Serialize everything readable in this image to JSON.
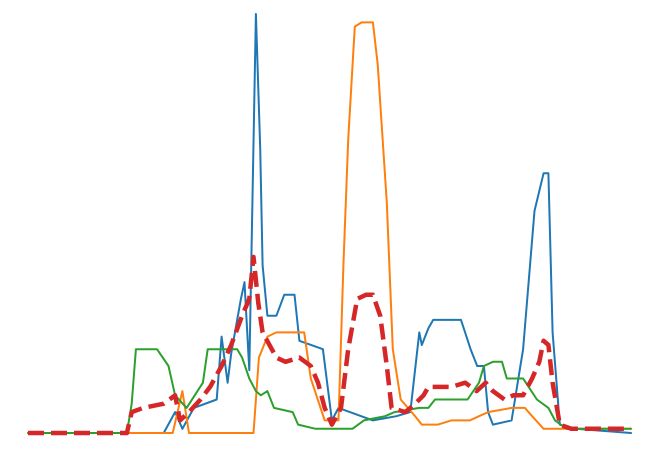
{
  "chart_data": {
    "type": "line",
    "title": "",
    "xlabel": "",
    "ylabel": "",
    "grid": false,
    "legend": "none",
    "axes_visible": false,
    "xlim": [
      0,
      100
    ],
    "ylim": [
      0,
      100
    ],
    "colors": {
      "blue": "#1f77b4",
      "orange": "#ff7f0e",
      "green": "#2ca02c",
      "red": "#d62728"
    },
    "series": [
      {
        "name": "blue",
        "color": "#1f77b4",
        "style": "solid",
        "points": [
          [
            0,
            0
          ],
          [
            15,
            0
          ],
          [
            22.5,
            0
          ],
          [
            24.4,
            5
          ],
          [
            25.6,
            1
          ],
          [
            27.5,
            6
          ],
          [
            31.3,
            8
          ],
          [
            32.1,
            23
          ],
          [
            33.1,
            12
          ],
          [
            33.7,
            19
          ],
          [
            35.3,
            32
          ],
          [
            35.9,
            36
          ],
          [
            36.7,
            15
          ],
          [
            37.8,
            100
          ],
          [
            38.5,
            68
          ],
          [
            38.9,
            40
          ],
          [
            39.7,
            28
          ],
          [
            41.2,
            28
          ],
          [
            42.5,
            33
          ],
          [
            44.2,
            33
          ],
          [
            45,
            22
          ],
          [
            48.9,
            20
          ],
          [
            50.4,
            3
          ],
          [
            51.5,
            6
          ],
          [
            57.2,
            3
          ],
          [
            61.1,
            4
          ],
          [
            63.4,
            5
          ],
          [
            64.9,
            24
          ],
          [
            65.3,
            21
          ],
          [
            66.4,
            25
          ],
          [
            67.2,
            27
          ],
          [
            71.8,
            27
          ],
          [
            73.4,
            20
          ],
          [
            74.5,
            16
          ],
          [
            75.6,
            16
          ],
          [
            76.3,
            5
          ],
          [
            77.1,
            2
          ],
          [
            80.2,
            3
          ],
          [
            82.1,
            20
          ],
          [
            84,
            53
          ],
          [
            85.5,
            62
          ],
          [
            86.3,
            62
          ],
          [
            87,
            24
          ],
          [
            88.2,
            2
          ],
          [
            90.8,
            1
          ],
          [
            100,
            0
          ]
        ]
      },
      {
        "name": "orange",
        "color": "#ff7f0e",
        "style": "solid",
        "points": [
          [
            0,
            0
          ],
          [
            24,
            0
          ],
          [
            25.6,
            10
          ],
          [
            26.7,
            0
          ],
          [
            37.4,
            0
          ],
          [
            38.3,
            18
          ],
          [
            39.7,
            23
          ],
          [
            41.2,
            24
          ],
          [
            45.8,
            24
          ],
          [
            46.9,
            13
          ],
          [
            49.2,
            3
          ],
          [
            51.5,
            3
          ],
          [
            52.3,
            40
          ],
          [
            53.1,
            70
          ],
          [
            54.2,
            97
          ],
          [
            55.3,
            98
          ],
          [
            57.2,
            98
          ],
          [
            58,
            88
          ],
          [
            59.5,
            55
          ],
          [
            60.5,
            20
          ],
          [
            61.8,
            8
          ],
          [
            64.2,
            4
          ],
          [
            65.3,
            2
          ],
          [
            68,
            2
          ],
          [
            70.2,
            3
          ],
          [
            73.3,
            3
          ],
          [
            74.8,
            4
          ],
          [
            76.3,
            5
          ],
          [
            80.2,
            6
          ],
          [
            82.4,
            6
          ],
          [
            83.6,
            4
          ],
          [
            85.5,
            1
          ],
          [
            88.2,
            1
          ],
          [
            100,
            1
          ]
        ]
      },
      {
        "name": "green",
        "color": "#2ca02c",
        "style": "solid",
        "points": [
          [
            0,
            0
          ],
          [
            16.4,
            0
          ],
          [
            17.2,
            7
          ],
          [
            17.9,
            20
          ],
          [
            19.1,
            20
          ],
          [
            21.4,
            20
          ],
          [
            23.3,
            16
          ],
          [
            24.4,
            9
          ],
          [
            26.3,
            6
          ],
          [
            29,
            12
          ],
          [
            29.8,
            20
          ],
          [
            32.1,
            20
          ],
          [
            34.7,
            20
          ],
          [
            35.5,
            18
          ],
          [
            36.7,
            13
          ],
          [
            37.8,
            10
          ],
          [
            38.6,
            9
          ],
          [
            39.7,
            10
          ],
          [
            40.8,
            6
          ],
          [
            43.9,
            5
          ],
          [
            44.8,
            2
          ],
          [
            47.7,
            1
          ],
          [
            53.8,
            1
          ],
          [
            55.7,
            3
          ],
          [
            59.2,
            4
          ],
          [
            60.8,
            5
          ],
          [
            64.9,
            6
          ],
          [
            66.4,
            6
          ],
          [
            67.5,
            8
          ],
          [
            72.9,
            8
          ],
          [
            74.8,
            12
          ],
          [
            75.6,
            16
          ],
          [
            77.1,
            17
          ],
          [
            78.6,
            17
          ],
          [
            79.4,
            13
          ],
          [
            82.1,
            13
          ],
          [
            84.4,
            8
          ],
          [
            86.3,
            6
          ],
          [
            87.4,
            3
          ],
          [
            89.3,
            1
          ],
          [
            100,
            1
          ]
        ]
      },
      {
        "name": "red",
        "color": "#d62728",
        "style": "dashed",
        "points": [
          [
            0,
            0
          ],
          [
            16.4,
            0
          ],
          [
            17.2,
            5
          ],
          [
            19.1,
            6
          ],
          [
            22.5,
            7
          ],
          [
            24.4,
            9
          ],
          [
            25.2,
            3
          ],
          [
            26.7,
            5
          ],
          [
            28.6,
            8
          ],
          [
            30.2,
            11
          ],
          [
            32.1,
            16
          ],
          [
            33.7,
            21
          ],
          [
            35.5,
            28
          ],
          [
            36.7,
            32
          ],
          [
            37.4,
            42
          ],
          [
            38.2,
            31
          ],
          [
            38.9,
            24
          ],
          [
            41.2,
            18
          ],
          [
            42.7,
            17
          ],
          [
            45,
            18
          ],
          [
            46.9,
            16
          ],
          [
            48.1,
            12
          ],
          [
            49.2,
            6
          ],
          [
            50.4,
            2
          ],
          [
            51.9,
            6
          ],
          [
            53.1,
            20
          ],
          [
            54.6,
            32
          ],
          [
            56.1,
            33
          ],
          [
            57.2,
            33
          ],
          [
            58.4,
            28
          ],
          [
            59.5,
            16
          ],
          [
            60.3,
            6
          ],
          [
            62.6,
            5
          ],
          [
            64.2,
            7
          ],
          [
            65.6,
            9
          ],
          [
            66.4,
            11
          ],
          [
            67.9,
            11
          ],
          [
            70.2,
            11
          ],
          [
            72.5,
            12
          ],
          [
            74.4,
            10
          ],
          [
            75.9,
            12
          ],
          [
            77.1,
            10
          ],
          [
            79,
            8
          ],
          [
            80.5,
            9
          ],
          [
            82.1,
            9
          ],
          [
            83.6,
            13
          ],
          [
            84.8,
            17
          ],
          [
            85.5,
            22
          ],
          [
            86.3,
            21
          ],
          [
            87,
            12
          ],
          [
            88.2,
            2
          ],
          [
            90.1,
            1
          ],
          [
            100,
            1
          ]
        ]
      }
    ]
  }
}
